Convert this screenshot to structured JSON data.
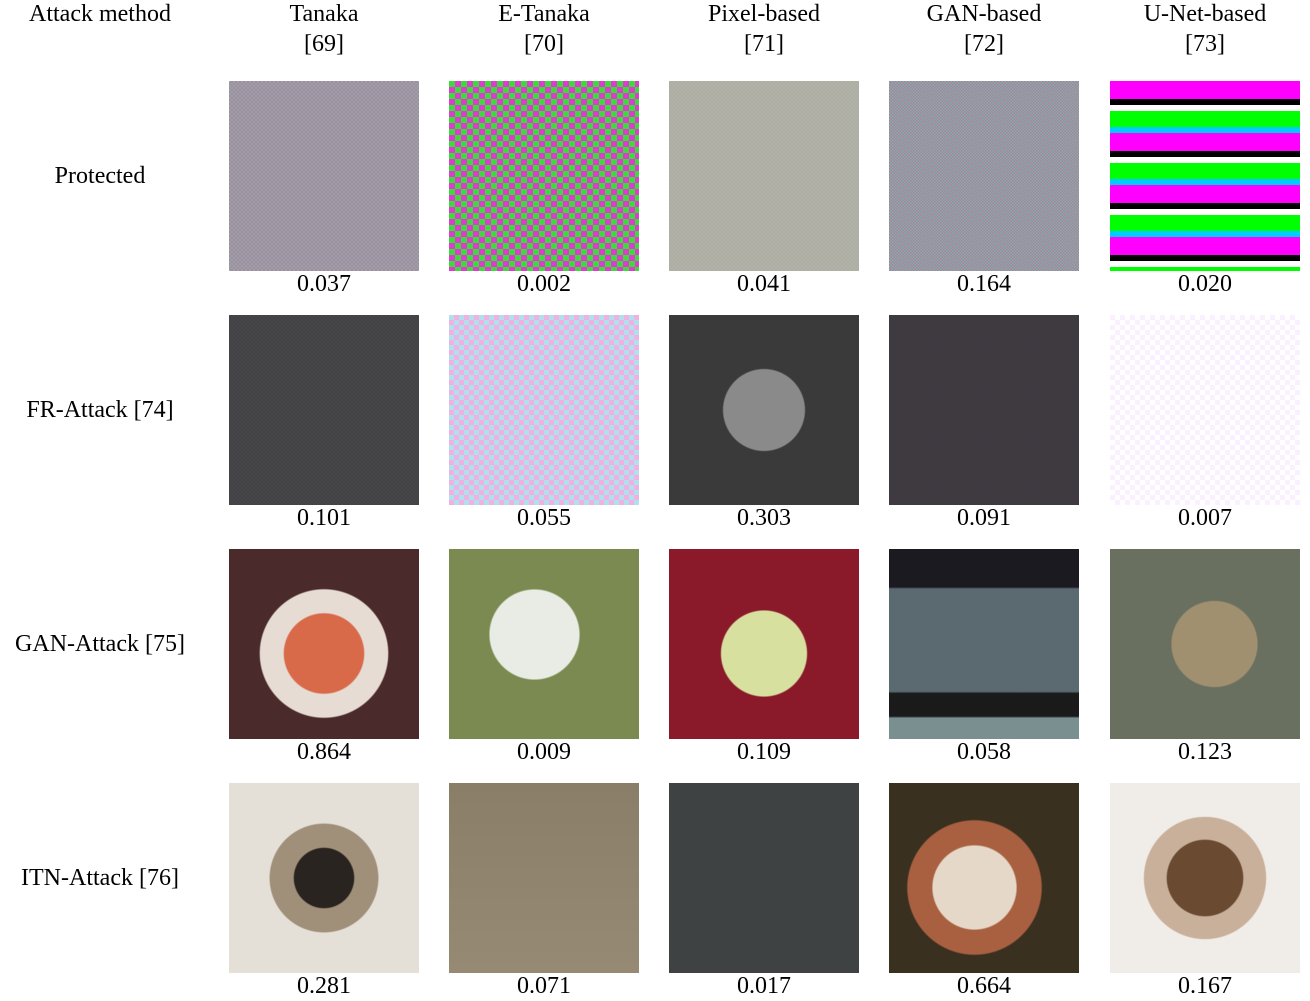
{
  "header": {
    "corner": "Attack method",
    "columns": [
      {
        "name": "Tanaka",
        "ref": "[69]"
      },
      {
        "name": "E-Tanaka",
        "ref": "[70]"
      },
      {
        "name": "Pixel-based",
        "ref": "[71]"
      },
      {
        "name": "GAN-based",
        "ref": "[72]"
      },
      {
        "name": "U-Net-based",
        "ref": "[73]"
      }
    ]
  },
  "rows": [
    {
      "label": "Protected",
      "scores": [
        "0.037",
        "0.002",
        "0.041",
        "0.164",
        "0.020"
      ]
    },
    {
      "label": "FR-Attack [74]",
      "scores": [
        "0.101",
        "0.055",
        "0.303",
        "0.091",
        "0.007"
      ]
    },
    {
      "label": "GAN-Attack [75]",
      "scores": [
        "0.864",
        "0.009",
        "0.109",
        "0.058",
        "0.123"
      ]
    },
    {
      "label": "ITN-Attack [76]",
      "scores": [
        "0.281",
        "0.071",
        "0.017",
        "0.664",
        "0.167"
      ]
    }
  ]
}
